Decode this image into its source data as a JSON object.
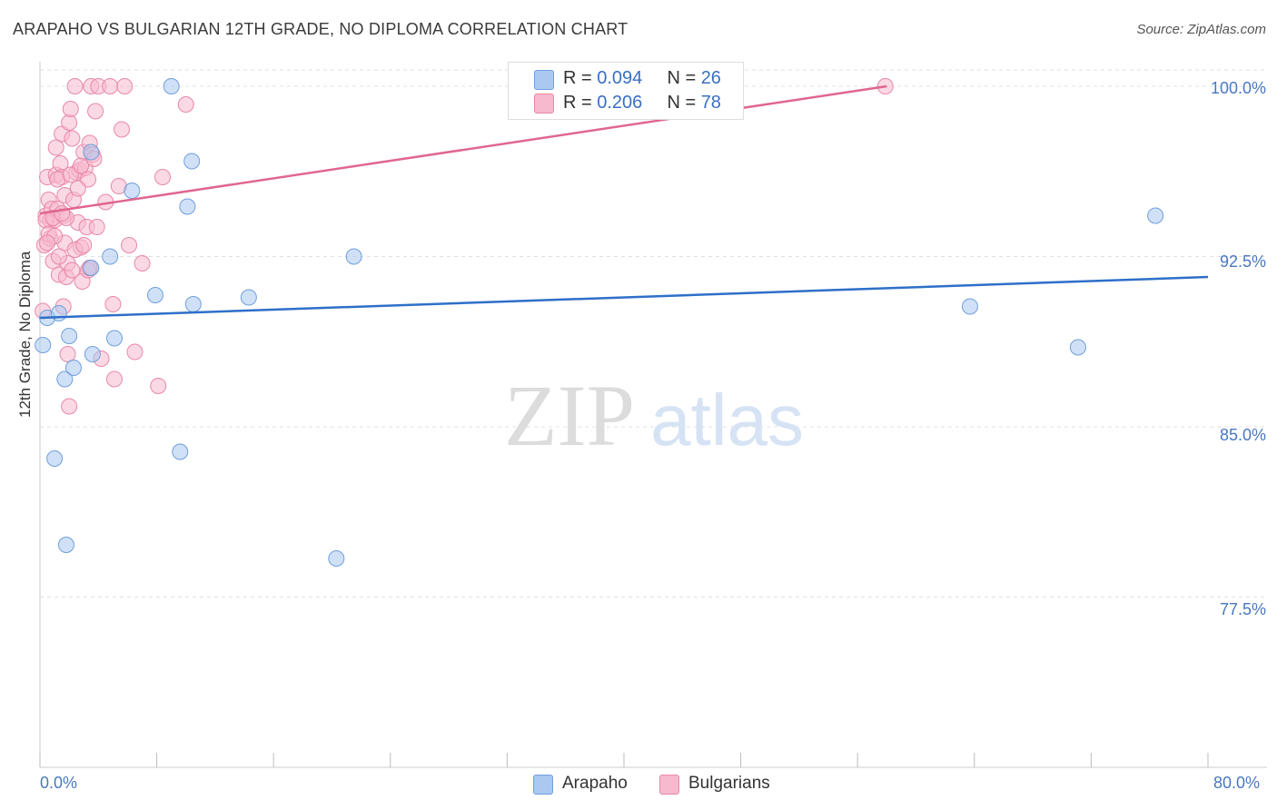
{
  "header": {
    "title": "ARAPAHO VS BULGARIAN 12TH GRADE, NO DIPLOMA CORRELATION CHART",
    "source": "Source: ZipAtlas.com"
  },
  "watermark": {
    "zip": "ZIP",
    "atlas": "atlas"
  },
  "legend": {
    "arapaho": {
      "r_label": "R = ",
      "r_value": "0.094",
      "n_label": "N = ",
      "n_value": "26"
    },
    "bulgarians": {
      "r_label": "R = ",
      "r_value": "0.206",
      "n_label": "N = ",
      "n_value": "78"
    }
  },
  "bottom_legend": {
    "arapaho": "Arapaho",
    "bulgarians": "Bulgarians"
  },
  "colors": {
    "arapaho_fill": "#aac8f0",
    "arapaho_stroke": "#6f9fdc",
    "arapaho_line": "#2e6fc9",
    "bulgarians_fill": "#f7b9cd",
    "bulgarians_stroke": "#e888a8",
    "bulgarians_line": "#e06690",
    "tick_text": "#4a77c0",
    "grid": "#e0e0e0"
  },
  "chart_data": {
    "type": "scatter",
    "title": "ARAPAHO VS BULGARIAN 12TH GRADE, NO DIPLOMA CORRELATION CHART",
    "xlabel": "",
    "ylabel": "12th Grade, No Diploma",
    "xlim": [
      0,
      80
    ],
    "ylim": [
      70.0,
      100.6
    ],
    "x_tick_labels": [
      "0.0%",
      "80.0%"
    ],
    "y_ticks": [
      {
        "value": 100.0,
        "label": "100.0%"
      },
      {
        "value": 92.5,
        "label": "92.5%"
      },
      {
        "value": 85.0,
        "label": "85.0%"
      },
      {
        "value": 77.5,
        "label": "77.5%"
      }
    ],
    "series": [
      {
        "name": "Arapaho",
        "r": 0.094,
        "n": 26,
        "trend": {
          "x": [
            0,
            80
          ],
          "y": [
            89.8,
            91.6
          ]
        },
        "points": [
          [
            0.2,
            88.6
          ],
          [
            0.5,
            89.8
          ],
          [
            1.3,
            90.0
          ],
          [
            1.0,
            83.6
          ],
          [
            1.7,
            87.1
          ],
          [
            2.0,
            89.0
          ],
          [
            2.3,
            87.6
          ],
          [
            1.8,
            79.8
          ],
          [
            3.5,
            97.1
          ],
          [
            3.6,
            88.2
          ],
          [
            3.5,
            92.0
          ],
          [
            4.8,
            92.5
          ],
          [
            5.1,
            88.9
          ],
          [
            6.3,
            95.4
          ],
          [
            7.9,
            90.8
          ],
          [
            9.0,
            100.0
          ],
          [
            9.6,
            83.9
          ],
          [
            10.1,
            94.7
          ],
          [
            10.4,
            96.7
          ],
          [
            10.5,
            90.4
          ],
          [
            14.3,
            90.7
          ],
          [
            20.3,
            79.2
          ],
          [
            21.5,
            92.5
          ],
          [
            63.7,
            90.3
          ],
          [
            71.1,
            88.5
          ],
          [
            76.4,
            94.3
          ]
        ]
      },
      {
        "name": "Bulgarians",
        "r": 0.206,
        "n": 78,
        "trend": {
          "x": [
            0,
            58
          ],
          "y": [
            94.4,
            100.0
          ]
        },
        "points": [
          [
            0.2,
            90.1
          ],
          [
            0.3,
            93.0
          ],
          [
            0.4,
            94.3
          ],
          [
            0.5,
            96.0
          ],
          [
            0.6,
            95.0
          ],
          [
            0.7,
            94.1
          ],
          [
            0.7,
            93.3
          ],
          [
            0.8,
            94.6
          ],
          [
            0.9,
            92.3
          ],
          [
            1.0,
            94.1
          ],
          [
            1.1,
            97.3
          ],
          [
            1.1,
            96.1
          ],
          [
            1.2,
            94.6
          ],
          [
            1.3,
            91.7
          ],
          [
            1.4,
            96.6
          ],
          [
            1.5,
            97.9
          ],
          [
            1.5,
            96.0
          ],
          [
            1.6,
            94.3
          ],
          [
            1.7,
            95.2
          ],
          [
            1.7,
            93.1
          ],
          [
            1.8,
            91.6
          ],
          [
            1.9,
            88.2
          ],
          [
            1.9,
            92.2
          ],
          [
            2.0,
            85.9
          ],
          [
            2.0,
            98.4
          ],
          [
            2.1,
            99.0
          ],
          [
            2.2,
            97.7
          ],
          [
            2.3,
            95.0
          ],
          [
            2.4,
            100.0
          ],
          [
            2.5,
            96.2
          ],
          [
            2.6,
            94.0
          ],
          [
            2.7,
            96.3
          ],
          [
            2.8,
            92.9
          ],
          [
            2.9,
            91.4
          ],
          [
            3.0,
            97.1
          ],
          [
            3.1,
            96.4
          ],
          [
            3.2,
            93.8
          ],
          [
            3.3,
            95.9
          ],
          [
            3.3,
            91.9
          ],
          [
            3.4,
            97.5
          ],
          [
            3.5,
            100.0
          ],
          [
            3.6,
            97.0
          ],
          [
            3.8,
            98.9
          ],
          [
            3.9,
            93.8
          ],
          [
            4.0,
            100.0
          ],
          [
            4.2,
            88.0
          ],
          [
            4.5,
            94.9
          ],
          [
            4.8,
            100.0
          ],
          [
            5.0,
            90.4
          ],
          [
            5.1,
            87.1
          ],
          [
            5.4,
            95.6
          ],
          [
            5.6,
            98.1
          ],
          [
            5.8,
            100.0
          ],
          [
            6.1,
            93.0
          ],
          [
            6.5,
            88.3
          ],
          [
            7.0,
            92.2
          ],
          [
            8.1,
            86.8
          ],
          [
            8.4,
            96.0
          ],
          [
            10.0,
            99.2
          ],
          [
            57.9,
            100.0
          ],
          [
            0.4,
            94.1
          ],
          [
            0.6,
            93.5
          ],
          [
            0.9,
            94.2
          ],
          [
            1.2,
            95.9
          ],
          [
            1.3,
            92.5
          ],
          [
            1.6,
            90.3
          ],
          [
            1.8,
            94.2
          ],
          [
            2.1,
            96.1
          ],
          [
            2.4,
            92.8
          ],
          [
            2.6,
            95.5
          ],
          [
            2.8,
            96.5
          ],
          [
            3.0,
            93.0
          ],
          [
            3.4,
            92.0
          ],
          [
            3.7,
            96.8
          ],
          [
            1.0,
            93.4
          ],
          [
            0.5,
            93.1
          ],
          [
            1.5,
            94.4
          ],
          [
            2.2,
            91.9
          ]
        ]
      }
    ]
  }
}
